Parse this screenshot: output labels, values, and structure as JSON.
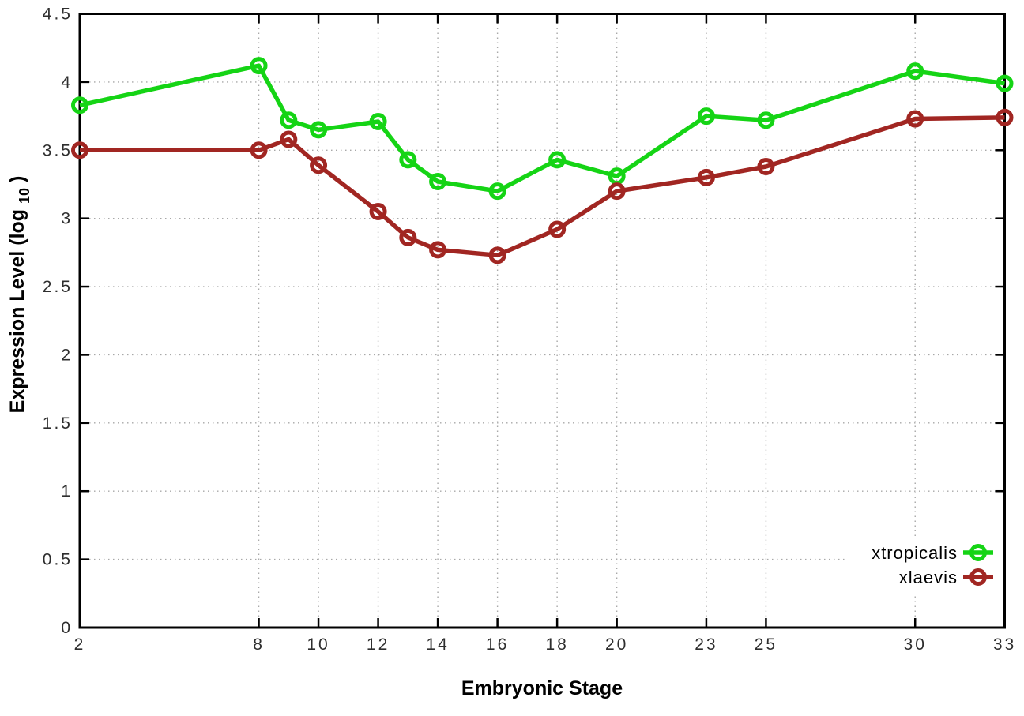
{
  "chart_data": {
    "type": "line",
    "title": "",
    "xlabel": "Embryonic Stage",
    "ylabel": "Expression Level (log10)",
    "ylabel_parts": {
      "pre": "Expression Level (log",
      "sub": "10",
      "post": ")"
    },
    "xlim": [
      2,
      33
    ],
    "ylim": [
      0,
      4.5
    ],
    "grid": true,
    "legend_position": "bottom-right",
    "xticks": [
      2,
      8,
      10,
      12,
      14,
      16,
      18,
      20,
      23,
      25,
      30,
      33
    ],
    "xtick_labels": [
      "2",
      "8",
      "10",
      "12",
      "14",
      "16",
      "18",
      "20",
      "23",
      "25",
      "30",
      "33"
    ],
    "yticks": [
      0,
      0.5,
      1,
      1.5,
      2,
      2.5,
      3,
      3.5,
      4,
      4.5
    ],
    "ytick_labels": [
      "0",
      "0.5",
      "1",
      "1.5",
      "2",
      "2.5",
      "3",
      "3.5",
      "4",
      "4.5"
    ],
    "x": [
      2,
      8,
      9,
      10,
      12,
      13,
      14,
      16,
      18,
      20,
      23,
      25,
      30,
      33
    ],
    "series": [
      {
        "name": "xtropicalis",
        "color": "#15d415",
        "values": [
          3.83,
          4.12,
          3.72,
          3.65,
          3.71,
          3.43,
          3.27,
          3.2,
          3.43,
          3.31,
          3.75,
          3.72,
          4.08,
          3.99
        ]
      },
      {
        "name": "xlaevis",
        "color": "#a12622",
        "values": [
          3.5,
          3.5,
          3.58,
          3.39,
          3.05,
          2.86,
          2.77,
          2.73,
          2.92,
          3.2,
          3.3,
          3.38,
          3.73,
          3.74
        ]
      }
    ],
    "colors": {
      "background": "#ffffff",
      "border": "#000000",
      "grid": "#a8a8a8",
      "tick_label": "#2e2e2e"
    }
  }
}
